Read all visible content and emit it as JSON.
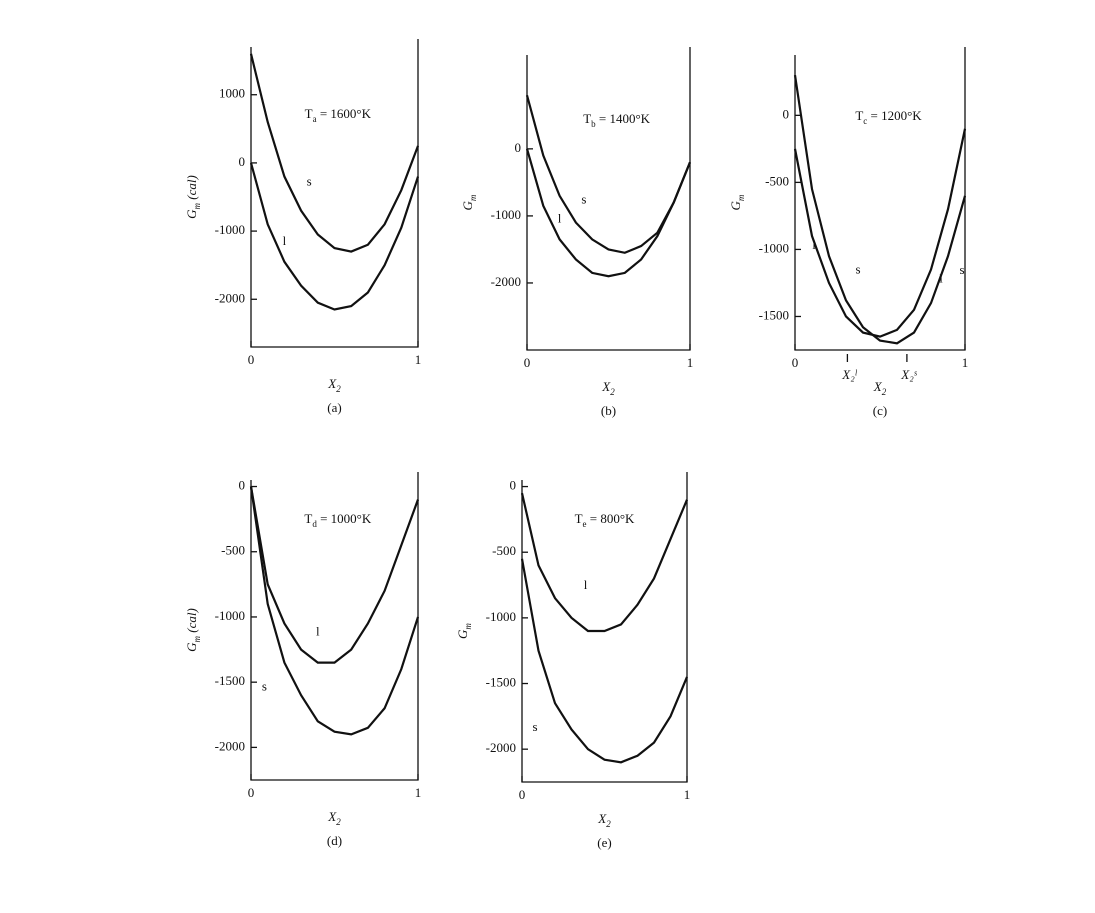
{
  "chart_data": [
    {
      "type": "line",
      "title": [
        "T",
        "a",
        " = 1600°K"
      ],
      "xlabel": [
        "X",
        "2"
      ],
      "ylabel": [
        "G",
        "m",
        " (cal)"
      ],
      "caption": "(a)",
      "x": [
        0,
        0.1,
        0.2,
        0.3,
        0.4,
        0.5,
        0.6,
        0.7,
        0.8,
        0.9,
        1
      ],
      "series": [
        {
          "name": "s",
          "color": "#111111",
          "values": [
            1600,
            600,
            -200,
            -700,
            -1050,
            -1250,
            -1300,
            -1200,
            -900,
            -400,
            250
          ]
        },
        {
          "name": "l",
          "color": "#111111",
          "values": [
            0,
            -900,
            -1450,
            -1800,
            -2050,
            -2150,
            -2100,
            -1900,
            -1500,
            -950,
            -200
          ]
        }
      ],
      "xlim": [
        0,
        1
      ],
      "xticks": [
        0,
        1
      ],
      "ylim": [
        -2700,
        1700
      ],
      "yticks": [
        -2000,
        -1000,
        0,
        1000
      ]
    },
    {
      "type": "line",
      "title": [
        "T",
        "b",
        " = 1400°K"
      ],
      "xlabel": [
        "X",
        "2"
      ],
      "ylabel": [
        "G",
        "m"
      ],
      "caption": "(b)",
      "x": [
        0,
        0.1,
        0.2,
        0.3,
        0.4,
        0.5,
        0.6,
        0.7,
        0.8,
        0.9,
        1
      ],
      "series": [
        {
          "name": "s",
          "color": "#111111",
          "values": [
            800,
            -100,
            -700,
            -1100,
            -1350,
            -1500,
            -1550,
            -1450,
            -1250,
            -800,
            -200
          ]
        },
        {
          "name": "l",
          "color": "#111111",
          "values": [
            0,
            -850,
            -1350,
            -1650,
            -1850,
            -1900,
            -1850,
            -1650,
            -1300,
            -800,
            -200
          ]
        }
      ],
      "xlim": [
        0,
        1
      ],
      "xticks": [
        0,
        1
      ],
      "ylim": [
        -3000,
        1400
      ],
      "yticks": [
        -2000,
        -1000,
        0
      ]
    },
    {
      "type": "line",
      "title": [
        "T",
        "c",
        " = 1200°K"
      ],
      "xlabel": [
        "X",
        "2"
      ],
      "ylabel": [
        "G",
        "m"
      ],
      "caption": "(c)",
      "annotations": [
        "X₂ˡ",
        "X₂ˢ"
      ],
      "x": [
        0,
        0.1,
        0.2,
        0.3,
        0.4,
        0.5,
        0.6,
        0.7,
        0.8,
        0.9,
        1
      ],
      "series": [
        {
          "name": "l",
          "color": "#111111",
          "values": [
            -250,
            -900,
            -1250,
            -1500,
            -1620,
            -1650,
            -1600,
            -1450,
            -1150,
            -700,
            -100
          ]
        },
        {
          "name": "s",
          "color": "#111111",
          "values": [
            300,
            -550,
            -1050,
            -1380,
            -1580,
            -1680,
            -1700,
            -1620,
            -1400,
            -1050,
            -600
          ]
        }
      ],
      "xlim": [
        0,
        1
      ],
      "xticks": [
        0,
        1
      ],
      "ylim": [
        -1750,
        450
      ],
      "yticks": [
        -1500,
        -1000,
        -500,
        0
      ]
    },
    {
      "type": "line",
      "title": [
        "T",
        "d",
        " = 1000°K"
      ],
      "xlabel": [
        "X",
        "2"
      ],
      "ylabel": [
        "G",
        "m",
        " (cal)"
      ],
      "caption": "(d)",
      "x": [
        0,
        0.1,
        0.2,
        0.3,
        0.4,
        0.5,
        0.6,
        0.7,
        0.8,
        0.9,
        1
      ],
      "series": [
        {
          "name": "l",
          "color": "#111111",
          "values": [
            0,
            -750,
            -1050,
            -1250,
            -1350,
            -1350,
            -1250,
            -1050,
            -800,
            -450,
            -100
          ]
        },
        {
          "name": "s",
          "color": "#111111",
          "values": [
            0,
            -900,
            -1350,
            -1600,
            -1800,
            -1880,
            -1900,
            -1850,
            -1700,
            -1400,
            -1000
          ]
        }
      ],
      "xlim": [
        0,
        1
      ],
      "xticks": [
        0,
        1
      ],
      "ylim": [
        -2250,
        50
      ],
      "yticks": [
        -2000,
        -1500,
        -1000,
        -500,
        0
      ]
    },
    {
      "type": "line",
      "title": [
        "T",
        "e",
        " = 800°K"
      ],
      "xlabel": [
        "X",
        "2"
      ],
      "ylabel": [
        "G",
        "m"
      ],
      "caption": "(e)",
      "x": [
        0,
        0.1,
        0.2,
        0.3,
        0.4,
        0.5,
        0.6,
        0.7,
        0.8,
        0.9,
        1
      ],
      "series": [
        {
          "name": "l",
          "color": "#111111",
          "values": [
            -50,
            -600,
            -850,
            -1000,
            -1100,
            -1100,
            -1050,
            -900,
            -700,
            -400,
            -100
          ]
        },
        {
          "name": "s",
          "color": "#111111",
          "values": [
            -550,
            -1250,
            -1650,
            -1850,
            -2000,
            -2080,
            -2100,
            -2050,
            -1950,
            -1750,
            -1450
          ]
        }
      ],
      "xlim": [
        0,
        1
      ],
      "xticks": [
        0,
        1
      ],
      "ylim": [
        -2250,
        50
      ],
      "yticks": [
        -2000,
        -1500,
        -1000,
        -500,
        0
      ]
    }
  ]
}
